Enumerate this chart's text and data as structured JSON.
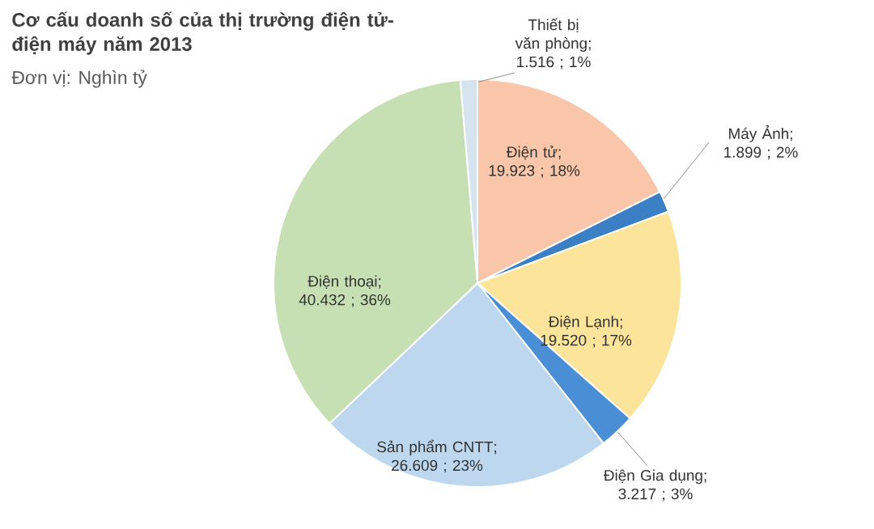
{
  "chart_data": {
    "type": "pie",
    "title": "Cơ cấu doanh số của thị trường điện tử-điện máy năm 2013",
    "subtitle": "Đơn vị: Nghìn tỷ",
    "categories": [
      "Điện tử",
      "Máy Ảnh",
      "Điện Lạnh",
      "Điện Gia dụng",
      "Sản phẩm CNTT",
      "Điện thoại",
      "Thiết bị văn phòng"
    ],
    "values": [
      19.923,
      1.899,
      19.52,
      3.217,
      26.609,
      40.432,
      1.516
    ],
    "value_labels": [
      "; 19.923 ; 18%",
      "; 1.899 ; 2%",
      "; 19.520 ; 17%",
      "; 3.217 ; 3%",
      "; 26.609 ; 23%",
      "; 40.432 ; 36%",
      "; 1.516 ; 1%"
    ],
    "colors": [
      "#f9c6a9",
      "#3b7fc4",
      "#fde49b",
      "#4a8fd6",
      "#bdd7ee",
      "#c6e0b4",
      "#d6e4f0"
    ]
  }
}
